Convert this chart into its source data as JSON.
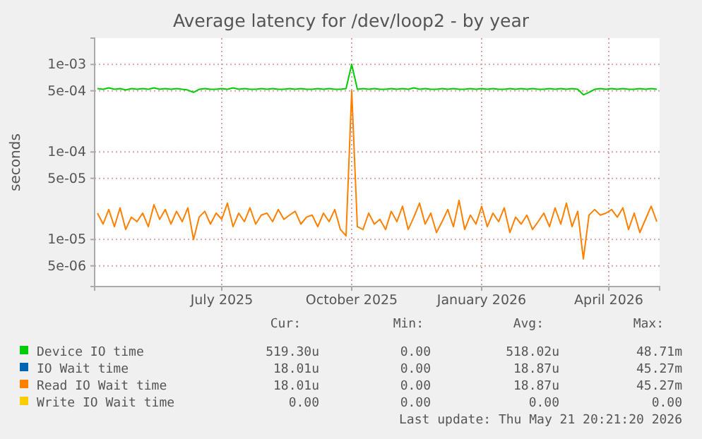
{
  "chart_data": {
    "type": "line",
    "title": "Average latency for /dev/loop2 - by year",
    "ylabel": "seconds",
    "log": "y",
    "grid": true,
    "legend": "bottom",
    "xlim": [
      "2025-04-02",
      "2026-05-07"
    ],
    "xticks": [
      {
        "value": "2025-07-01",
        "label": "July 2025"
      },
      {
        "value": "2025-10-01",
        "label": "October 2025"
      },
      {
        "value": "2026-01-01",
        "label": "January 2026"
      },
      {
        "value": "2026-04-01",
        "label": "April 2026"
      }
    ],
    "ylim": [
      2.9e-06,
      0.002
    ],
    "yticks": [
      {
        "value": 5e-06,
        "label": "5e-06"
      },
      {
        "value": 1e-05,
        "label": "1e-05"
      },
      {
        "value": 5e-05,
        "label": "5e-05"
      },
      {
        "value": 0.0001,
        "label": "1e-04"
      },
      {
        "value": 0.0005,
        "label": "5e-04"
      },
      {
        "value": 0.001,
        "label": "1e-03"
      }
    ],
    "x": [
      "2025-04-04",
      "2025-04-08",
      "2025-04-12",
      "2025-04-16",
      "2025-04-20",
      "2025-04-24",
      "2025-04-28",
      "2025-05-02",
      "2025-05-06",
      "2025-05-10",
      "2025-05-14",
      "2025-05-18",
      "2025-05-22",
      "2025-05-26",
      "2025-05-30",
      "2025-06-03",
      "2025-06-07",
      "2025-06-11",
      "2025-06-15",
      "2025-06-19",
      "2025-06-23",
      "2025-06-27",
      "2025-07-01",
      "2025-07-05",
      "2025-07-09",
      "2025-07-13",
      "2025-07-17",
      "2025-07-21",
      "2025-07-25",
      "2025-07-29",
      "2025-08-02",
      "2025-08-06",
      "2025-08-10",
      "2025-08-14",
      "2025-08-18",
      "2025-08-22",
      "2025-08-26",
      "2025-08-30",
      "2025-09-03",
      "2025-09-07",
      "2025-09-11",
      "2025-09-15",
      "2025-09-19",
      "2025-09-23",
      "2025-09-27",
      "2025-10-01",
      "2025-10-05",
      "2025-10-09",
      "2025-10-13",
      "2025-10-17",
      "2025-10-21",
      "2025-10-25",
      "2025-10-29",
      "2025-11-02",
      "2025-11-06",
      "2025-11-10",
      "2025-11-14",
      "2025-11-18",
      "2025-11-22",
      "2025-11-26",
      "2025-11-30",
      "2025-12-04",
      "2025-12-08",
      "2025-12-12",
      "2025-12-16",
      "2025-12-20",
      "2025-12-24",
      "2025-12-28",
      "2026-01-01",
      "2026-01-05",
      "2026-01-09",
      "2026-01-13",
      "2026-01-17",
      "2026-01-21",
      "2026-01-25",
      "2026-01-29",
      "2026-02-02",
      "2026-02-06",
      "2026-02-10",
      "2026-02-14",
      "2026-02-18",
      "2026-02-22",
      "2026-02-26",
      "2026-03-02",
      "2026-03-06",
      "2026-03-10",
      "2026-03-14",
      "2026-03-18",
      "2026-03-22",
      "2026-03-26",
      "2026-03-30",
      "2026-04-03",
      "2026-04-07",
      "2026-04-11",
      "2026-04-15",
      "2026-04-19",
      "2026-04-23",
      "2026-04-27",
      "2026-05-01",
      "2026-05-05"
    ],
    "series": [
      {
        "name": "Device IO time",
        "color": "#00cc00",
        "values": [
          0.00053,
          0.00052,
          0.00054,
          0.00052,
          0.00053,
          0.00051,
          0.00053,
          0.00052,
          0.00053,
          0.00052,
          0.00054,
          0.00052,
          0.00053,
          0.00052,
          0.00053,
          0.00052,
          0.00051,
          0.00048,
          0.00052,
          0.00053,
          0.00052,
          0.00052,
          0.00053,
          0.00052,
          0.00054,
          0.00052,
          0.00053,
          0.00052,
          0.00052,
          0.00053,
          0.00052,
          0.00053,
          0.00052,
          0.00052,
          0.00053,
          0.00052,
          0.00053,
          0.00052,
          0.00052,
          0.00053,
          0.00052,
          0.00053,
          0.00052,
          0.00052,
          0.00053,
          0.001,
          0.00052,
          0.00053,
          0.00052,
          0.00053,
          0.00052,
          0.00052,
          0.00053,
          0.00052,
          0.00053,
          0.00052,
          0.00054,
          0.00052,
          0.00053,
          0.00052,
          0.00052,
          0.00053,
          0.00052,
          0.00053,
          0.00052,
          0.00052,
          0.00053,
          0.00052,
          0.00053,
          0.00052,
          0.00053,
          0.00052,
          0.00052,
          0.00053,
          0.00052,
          0.00053,
          0.00052,
          0.00053,
          0.00052,
          0.00052,
          0.00053,
          0.00052,
          0.00053,
          0.00052,
          0.00053,
          0.00052,
          0.00045,
          0.00048,
          0.00052,
          0.00053,
          0.00052,
          0.00053,
          0.00052,
          0.00053,
          0.00052,
          0.00052,
          0.00053,
          0.00052,
          0.00053,
          0.00052
        ]
      },
      {
        "name": "IO Wait time",
        "color": "#0066b3",
        "values": [
          null,
          null,
          null,
          null,
          null,
          null,
          null,
          null,
          null,
          null,
          null,
          null,
          null,
          null,
          null,
          null,
          null,
          null,
          null,
          null,
          null,
          null,
          null,
          null,
          null,
          null,
          null,
          null,
          null,
          null,
          null,
          null,
          null,
          null,
          null,
          null,
          null,
          null,
          null,
          null,
          null,
          null,
          null,
          null,
          null,
          null,
          null,
          null,
          null,
          null,
          null,
          null,
          null,
          null,
          null,
          null,
          null,
          null,
          null,
          null,
          null,
          null,
          null,
          null,
          null,
          null,
          null,
          null,
          null,
          null,
          null,
          null,
          null,
          null,
          null,
          null,
          null,
          null,
          null,
          null,
          null,
          null,
          null,
          null,
          null,
          null,
          null,
          null,
          null,
          null,
          null,
          null,
          null,
          null,
          null,
          null,
          null,
          null,
          null,
          null
        ]
      },
      {
        "name": "Read IO Wait time",
        "color": "#ff8000",
        "values": [
          2e-05,
          1.5e-05,
          2.2e-05,
          1.4e-05,
          2.3e-05,
          1.3e-05,
          1.8e-05,
          1.6e-05,
          2e-05,
          1.4e-05,
          2.5e-05,
          1.7e-05,
          2.2e-05,
          1.5e-05,
          2.1e-05,
          1.6e-05,
          2.3e-05,
          1e-05,
          1.8e-05,
          2.1e-05,
          1.5e-05,
          2e-05,
          1.7e-05,
          2.6e-05,
          1.4e-05,
          2e-05,
          1.6e-05,
          2.3e-05,
          1.5e-05,
          1.9e-05,
          2e-05,
          1.6e-05,
          2.2e-05,
          1.7e-05,
          1.9e-05,
          2.1e-05,
          1.5e-05,
          1.8e-05,
          1.9e-05,
          1.4e-05,
          2e-05,
          1.6e-05,
          2.2e-05,
          1.3e-05,
          1.1e-05,
          0.0005,
          1.4e-05,
          1.3e-05,
          2e-05,
          1.5e-05,
          1.7e-05,
          1.3e-05,
          2.1e-05,
          1.6e-05,
          2.4e-05,
          1.3e-05,
          1.8e-05,
          2.6e-05,
          1.5e-05,
          2e-05,
          1.2e-05,
          1.6e-05,
          2.2e-05,
          1.4e-05,
          2.8e-05,
          1.3e-05,
          1.9e-05,
          1.5e-05,
          2.4e-05,
          1.4e-05,
          2e-05,
          1.6e-05,
          2.3e-05,
          1.2e-05,
          1.8e-05,
          1.5e-05,
          1.9e-05,
          1.3e-05,
          1.6e-05,
          2e-05,
          1.4e-05,
          2.3e-05,
          1.5e-05,
          2.6e-05,
          1.4e-05,
          2.1e-05,
          6e-06,
          1.9e-05,
          2.2e-05,
          1.9e-05,
          2e-05,
          2.2e-05,
          1.8e-05,
          2.3e-05,
          1.3e-05,
          2e-05,
          1.2e-05,
          1.7e-05,
          2.4e-05,
          1.6e-05
        ]
      },
      {
        "name": "Write IO Wait time",
        "color": "#ffcc00",
        "values": [
          null,
          null,
          null,
          null,
          null,
          null,
          null,
          null,
          null,
          null,
          null,
          null,
          null,
          null,
          null,
          null,
          null,
          null,
          null,
          null,
          null,
          null,
          null,
          null,
          null,
          null,
          null,
          null,
          null,
          null,
          null,
          null,
          null,
          null,
          null,
          null,
          null,
          null,
          null,
          null,
          null,
          null,
          null,
          null,
          null,
          null,
          null,
          null,
          null,
          null,
          null,
          null,
          null,
          null,
          null,
          null,
          null,
          null,
          null,
          null,
          null,
          null,
          null,
          null,
          null,
          null,
          null,
          null,
          null,
          null,
          null,
          null,
          null,
          null,
          null,
          null,
          null,
          null,
          null,
          null,
          null,
          null,
          null,
          null,
          null,
          null,
          null,
          null,
          null,
          null,
          null,
          null,
          null,
          null,
          null,
          null,
          null,
          null,
          null,
          null
        ]
      }
    ],
    "annotations": [
      "Cur:",
      "Min:",
      "Avg:",
      "Max:",
      "519.30u",
      "0.00",
      "518.02u",
      "48.71m",
      "18.01u",
      "0.00",
      "18.87u",
      "45.27m",
      "18.01u",
      "0.00",
      "18.87u",
      "45.27m",
      "0.00",
      "0.00",
      "0.00",
      "0.00",
      "Last update: Thu May 21 20:21:20 2026"
    ]
  }
}
